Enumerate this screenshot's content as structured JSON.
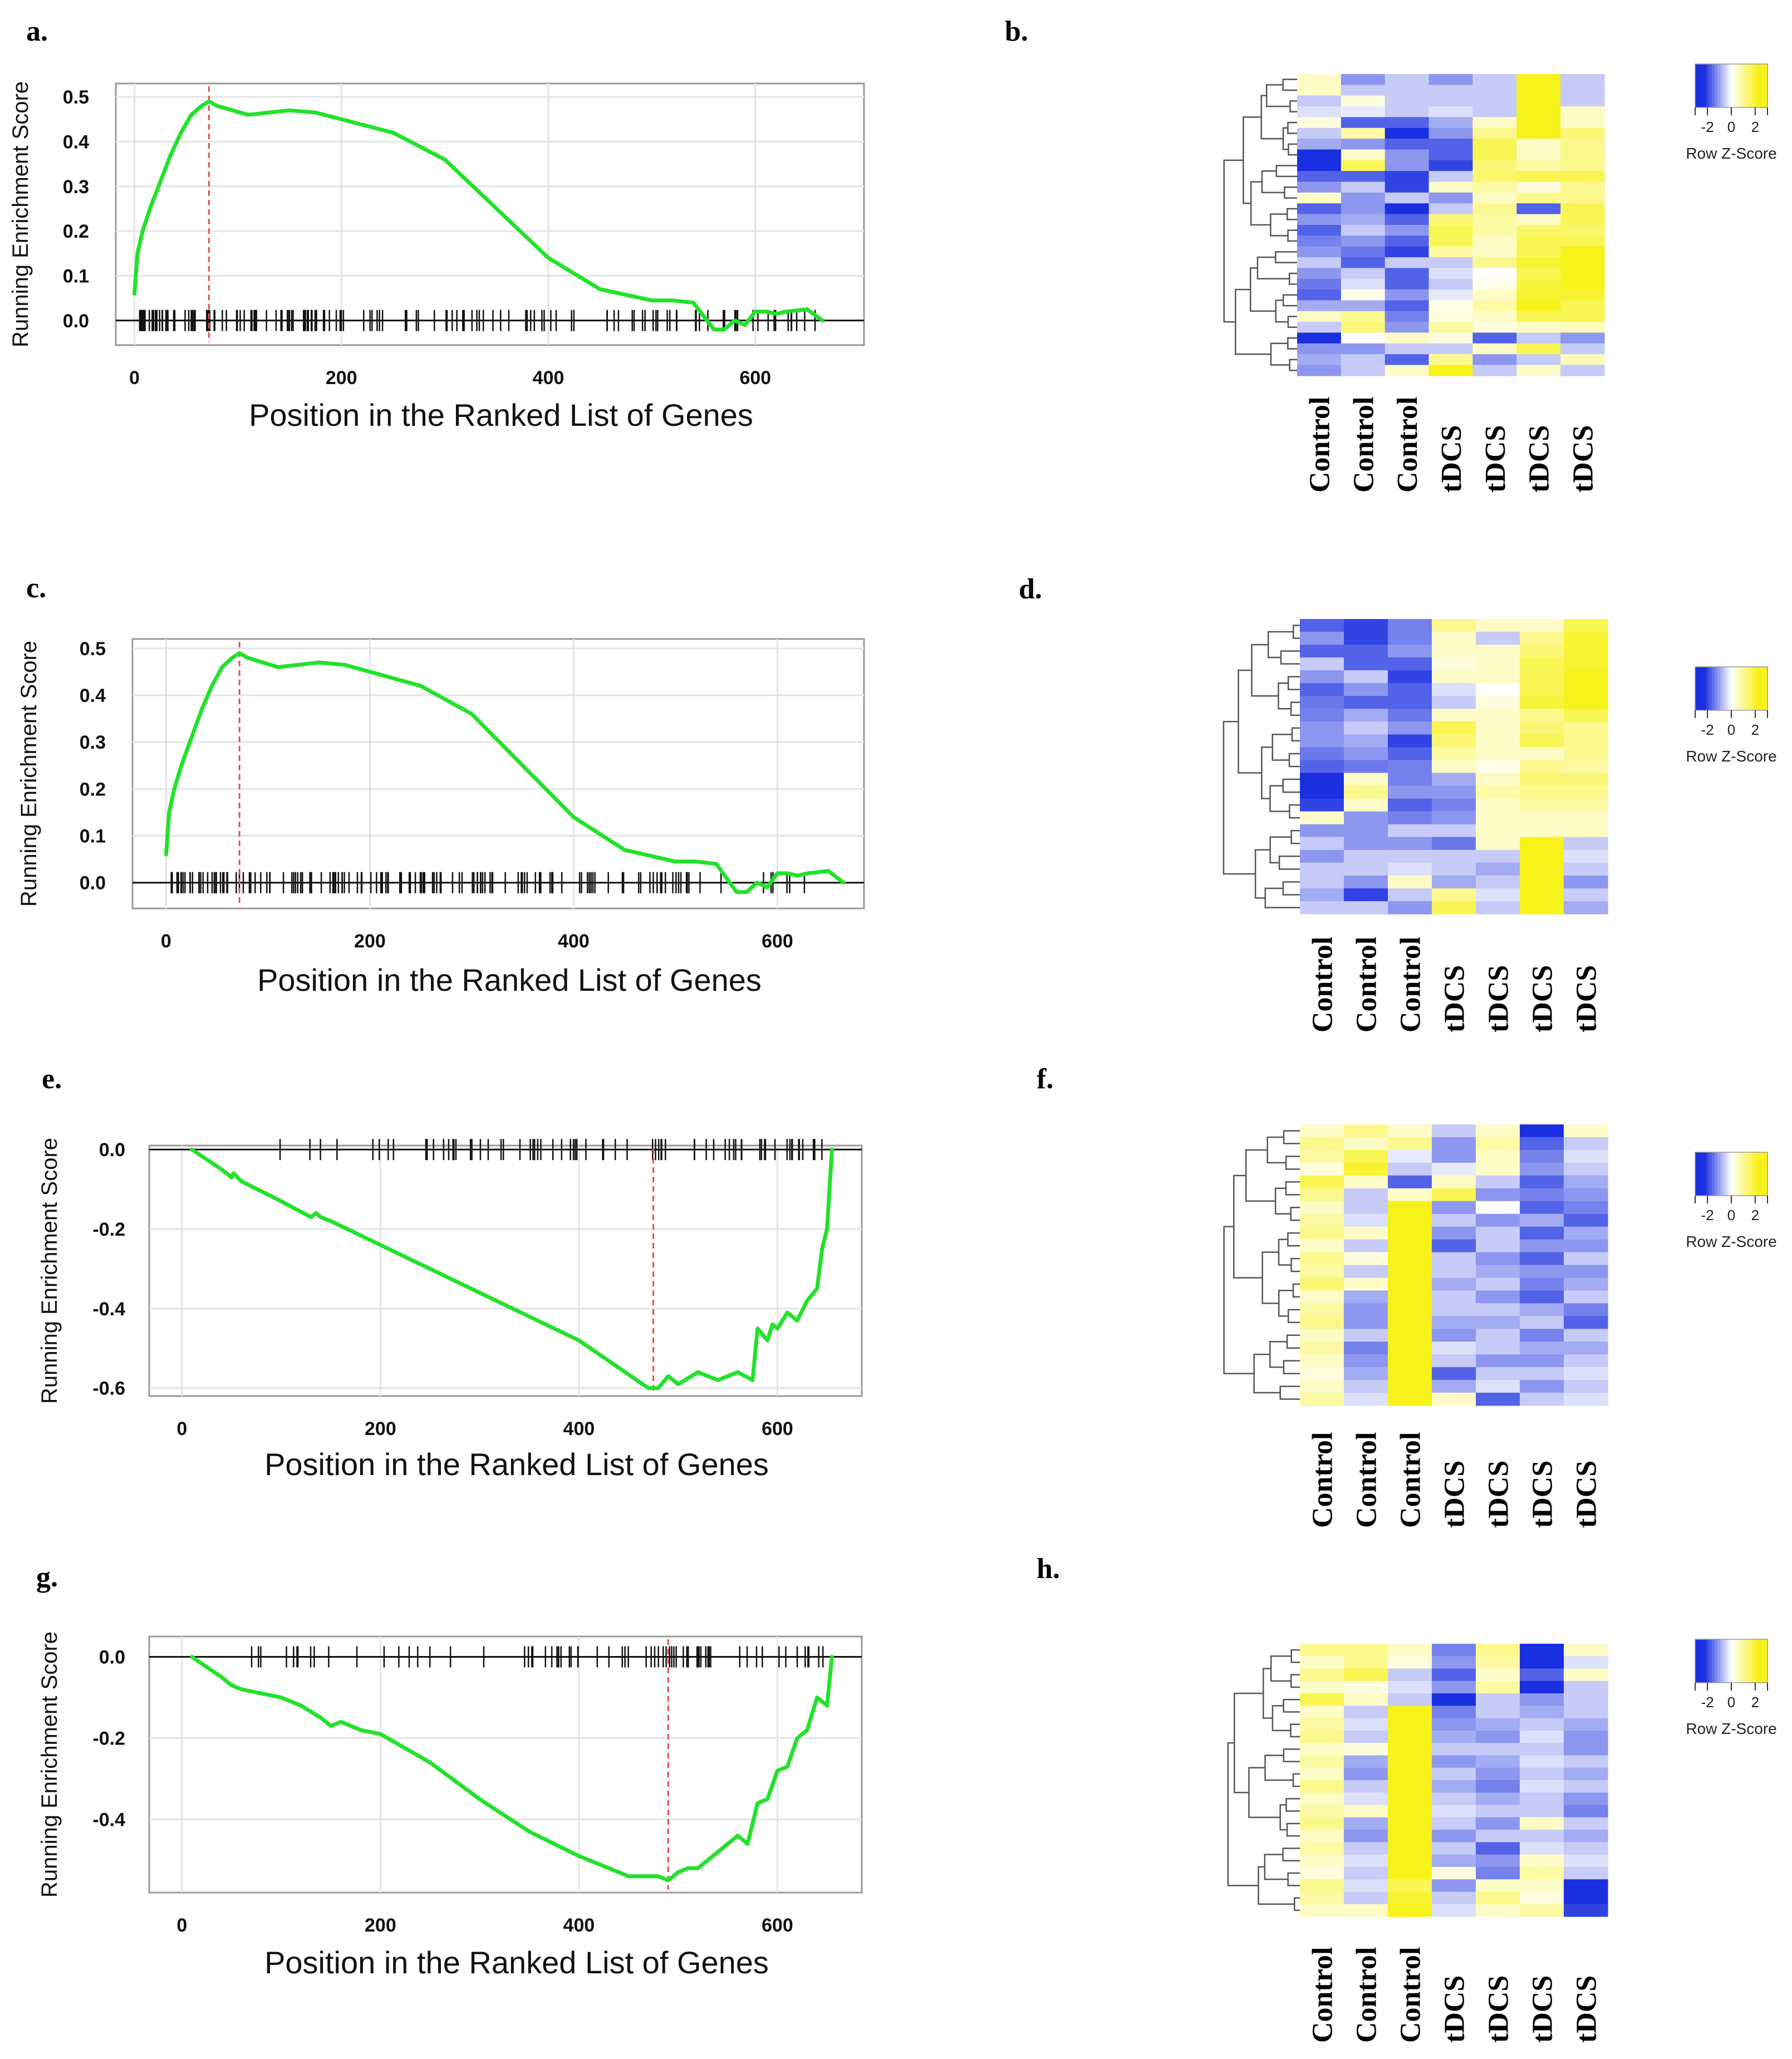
{
  "panel_letters": {
    "a": "a.",
    "b": "b.",
    "c": "c.",
    "d": "d.",
    "e": "e.",
    "f": "f.",
    "g": "g.",
    "h": "h."
  },
  "x_axis_title": "Position in the Ranked List of Genes",
  "y_axis_title": "Running Enrichment Score",
  "heatmap_column_labels": [
    "Control",
    "Control",
    "Control",
    "tDCS",
    "tDCS",
    "tDCS",
    "tDCS"
  ],
  "color_key": {
    "title": "Row Z-Score",
    "ticks": [
      "-2",
      "0",
      "2"
    ],
    "low": "#1a2fe0",
    "mid": "#ffffff",
    "high": "#f7f21a"
  },
  "colors": {
    "curve": "#22e22a",
    "peak_line": "#e0504a",
    "grid": "#e4e4e4"
  },
  "chart_data": [
    {
      "panel": "a",
      "type": "line",
      "title": "",
      "xlabel": "Position in the Ranked List of Genes",
      "ylabel": "Running Enrichment Score",
      "xlim": [
        -18,
        705
      ],
      "ylim": [
        -0.055,
        0.53
      ],
      "xticks": [
        "0",
        "200",
        "400",
        "600"
      ],
      "yticks": [
        "0.0",
        "0.1",
        "0.2",
        "0.3",
        "0.4",
        "0.5"
      ],
      "x": [
        0,
        3,
        8,
        15,
        25,
        35,
        45,
        55,
        65,
        72,
        80,
        95,
        110,
        130,
        150,
        175,
        200,
        250,
        300,
        350,
        400,
        450,
        500,
        520,
        540,
        560,
        570,
        580,
        590,
        600,
        610,
        620,
        630,
        650,
        665
      ],
      "y": [
        0.06,
        0.15,
        0.2,
        0.25,
        0.31,
        0.37,
        0.42,
        0.46,
        0.48,
        0.49,
        0.48,
        0.47,
        0.46,
        0.465,
        0.47,
        0.465,
        0.45,
        0.42,
        0.36,
        0.25,
        0.14,
        0.07,
        0.045,
        0.045,
        0.04,
        -0.02,
        -0.02,
        0.0,
        -0.01,
        0.02,
        0.02,
        0.015,
        0.02,
        0.025,
        0.0
      ],
      "peak_x": 72
    },
    {
      "panel": "c",
      "type": "line",
      "title": "",
      "xlabel": "Position in the Ranked List of Genes",
      "ylabel": "Running Enrichment Score",
      "xlim": [
        -33,
        685
      ],
      "ylim": [
        -0.055,
        0.52
      ],
      "xticks": [
        "0",
        "200",
        "400",
        "600"
      ],
      "yticks": [
        "0.0",
        "0.1",
        "0.2",
        "0.3",
        "0.4",
        "0.5"
      ],
      "x": [
        0,
        3,
        8,
        15,
        25,
        35,
        45,
        55,
        65,
        72,
        80,
        95,
        110,
        130,
        150,
        175,
        200,
        250,
        300,
        350,
        400,
        450,
        500,
        520,
        540,
        560,
        570,
        580,
        590,
        600,
        610,
        620,
        630,
        650,
        665
      ],
      "y": [
        0.06,
        0.15,
        0.2,
        0.25,
        0.31,
        0.37,
        0.42,
        0.46,
        0.48,
        0.49,
        0.48,
        0.47,
        0.46,
        0.465,
        0.47,
        0.465,
        0.45,
        0.42,
        0.36,
        0.25,
        0.14,
        0.07,
        0.045,
        0.045,
        0.04,
        -0.02,
        -0.02,
        0.0,
        -0.01,
        0.02,
        0.02,
        0.015,
        0.02,
        0.025,
        0.0
      ],
      "peak_x": 72
    },
    {
      "panel": "e",
      "type": "line",
      "title": "",
      "xlabel": "Position in the Ranked List of Genes",
      "ylabel": "Running Enrichment Score",
      "xlim": [
        -33,
        685
      ],
      "ylim": [
        -0.62,
        0.01
      ],
      "xticks": [
        "0",
        "200",
        "400",
        "600"
      ],
      "yticks": [
        "0.0",
        "-0.2",
        "-0.4",
        "-0.6"
      ],
      "x": [
        10,
        40,
        50,
        52,
        60,
        100,
        130,
        135,
        140,
        150,
        200,
        300,
        400,
        470,
        480,
        490,
        500,
        520,
        540,
        560,
        575,
        580,
        590,
        595,
        600,
        610,
        620,
        630,
        640,
        645,
        650,
        655
      ],
      "y": [
        0.0,
        -0.05,
        -0.07,
        -0.06,
        -0.08,
        -0.13,
        -0.17,
        -0.16,
        -0.17,
        -0.18,
        -0.24,
        -0.36,
        -0.48,
        -0.6,
        -0.6,
        -0.57,
        -0.59,
        -0.56,
        -0.58,
        -0.56,
        -0.58,
        -0.45,
        -0.48,
        -0.44,
        -0.45,
        -0.41,
        -0.43,
        -0.38,
        -0.35,
        -0.25,
        -0.2,
        0.0
      ],
      "peak_x": 475
    },
    {
      "panel": "g",
      "type": "line",
      "title": "",
      "xlabel": "Position in the Ranked List of Genes",
      "ylabel": "Running Enrichment Score",
      "xlim": [
        -33,
        685
      ],
      "ylim": [
        -0.58,
        0.05
      ],
      "xticks": [
        "0",
        "200",
        "400",
        "600"
      ],
      "yticks": [
        "0.0",
        "-0.2",
        "-0.4"
      ],
      "x": [
        10,
        40,
        50,
        60,
        80,
        100,
        120,
        140,
        150,
        160,
        180,
        200,
        250,
        300,
        350,
        400,
        450,
        480,
        490,
        500,
        510,
        520,
        540,
        560,
        570,
        580,
        590,
        600,
        610,
        620,
        630,
        640,
        650,
        655
      ],
      "y": [
        0.0,
        -0.05,
        -0.07,
        -0.08,
        -0.09,
        -0.1,
        -0.12,
        -0.15,
        -0.17,
        -0.16,
        -0.18,
        -0.19,
        -0.26,
        -0.35,
        -0.43,
        -0.49,
        -0.54,
        -0.54,
        -0.55,
        -0.53,
        -0.52,
        -0.52,
        -0.48,
        -0.44,
        -0.46,
        -0.36,
        -0.35,
        -0.28,
        -0.27,
        -0.2,
        -0.18,
        -0.1,
        -0.12,
        0.0
      ],
      "peak_x": 490
    }
  ],
  "heatmaps": [
    {
      "panel": "b",
      "rows": [
        [
          0.5,
          -1,
          -0.5,
          -1,
          -0.5,
          2,
          -0.5
        ],
        [
          0.5,
          -0.5,
          -0.5,
          -0.5,
          -0.5,
          2,
          -0.5
        ],
        [
          -0.5,
          0.3,
          -0.5,
          -0.5,
          -0.5,
          2,
          -0.5
        ],
        [
          -0.3,
          -0.2,
          -0.5,
          -0.3,
          -0.5,
          2,
          0.5
        ],
        [
          0.3,
          -1.5,
          -1.5,
          -0.8,
          0.5,
          2,
          0.5
        ],
        [
          -0.5,
          0.8,
          -2,
          -1,
          1,
          2,
          1.2
        ],
        [
          -0.8,
          -1,
          -1.5,
          -1.5,
          1.5,
          0.5,
          1
        ],
        [
          -2,
          0.5,
          -1,
          -1.5,
          1.5,
          0.5,
          1
        ],
        [
          -2,
          1.5,
          -1,
          -1.8,
          1.2,
          0.8,
          1
        ],
        [
          -1.5,
          -1.5,
          -1.8,
          -0.5,
          1.3,
          1.5,
          1.5
        ],
        [
          -1,
          -0.5,
          -1.8,
          0.5,
          0.8,
          0.3,
          1
        ],
        [
          0.5,
          -1,
          -0.5,
          -1,
          0.5,
          1,
          1
        ],
        [
          -1.5,
          -1,
          -2,
          -0.5,
          1,
          -1.5,
          1.5
        ],
        [
          -1,
          -0.8,
          -1.5,
          1.2,
          0.8,
          0.5,
          1.5
        ],
        [
          -1.5,
          -0.5,
          -1,
          1.5,
          0.8,
          1.3,
          1.3
        ],
        [
          -1.2,
          -1,
          -1.5,
          1.5,
          0.5,
          1.5,
          1.5
        ],
        [
          -1,
          -1.3,
          -1.8,
          0.8,
          0.5,
          1.5,
          2
        ],
        [
          -0.5,
          -1.5,
          -0.5,
          -0.5,
          1,
          1.8,
          2
        ],
        [
          -1,
          -0.5,
          -1.5,
          -0.3,
          0,
          1.5,
          2
        ],
        [
          -1.3,
          -0.3,
          -1.5,
          -0.5,
          0.2,
          1.7,
          2
        ],
        [
          -1.5,
          0.2,
          -1,
          -0.2,
          0.5,
          1.8,
          1.8
        ],
        [
          -0.8,
          -0.8,
          -1.5,
          0.2,
          0.8,
          2,
          1.5
        ],
        [
          0.5,
          1,
          -1.2,
          0.3,
          0.5,
          1.5,
          1.5
        ],
        [
          -0.5,
          1.2,
          -1,
          0.8,
          0.3,
          0.5,
          0.6
        ],
        [
          -2.2,
          0,
          0.5,
          0.3,
          -1.5,
          -0.5,
          -1
        ],
        [
          -1,
          -1,
          -0.5,
          -0.5,
          0.5,
          1.5,
          -0.5
        ],
        [
          -0.8,
          -0.5,
          -1.5,
          1,
          -1,
          -0.5,
          0.6
        ],
        [
          -1,
          -0.5,
          0.5,
          2,
          -0.5,
          0.5,
          -0.5
        ]
      ]
    },
    {
      "panel": "d",
      "rows": [
        [
          -1.5,
          -1.8,
          -1.2,
          1,
          0.5,
          0.5,
          1.5
        ],
        [
          -1,
          -1.8,
          -1.2,
          0.5,
          -0.5,
          1,
          1.8
        ],
        [
          -1.5,
          -1.5,
          -1,
          0.5,
          0.5,
          1.2,
          1.8
        ],
        [
          -0.5,
          -1.5,
          -1.5,
          0.3,
          0.5,
          1.5,
          1.8
        ],
        [
          -1,
          -0.5,
          -1.8,
          0.5,
          0.5,
          1.5,
          2
        ],
        [
          -1.5,
          -1,
          -1.5,
          -0.3,
          0,
          1.5,
          2
        ],
        [
          -1.3,
          -1.5,
          -1.5,
          -0.5,
          0.3,
          1.7,
          2
        ],
        [
          -1.2,
          -0.8,
          -1.3,
          0.5,
          0.5,
          1,
          1.5
        ],
        [
          -1,
          -0.5,
          -1,
          1.5,
          0.5,
          1.2,
          1
        ],
        [
          -1,
          -0.8,
          -1.8,
          1.2,
          0.5,
          1.5,
          1
        ],
        [
          -1.3,
          -1,
          -1.5,
          0.8,
          0.5,
          0.5,
          1
        ],
        [
          -1.5,
          -1.3,
          -1.2,
          0.5,
          0.2,
          1,
          0.8
        ],
        [
          -2,
          0.5,
          -1.2,
          -0.8,
          0.5,
          1.2,
          1.2
        ],
        [
          -2,
          1,
          -1,
          -1,
          0.8,
          1,
          1
        ],
        [
          -1.8,
          0.5,
          -1.5,
          -1.2,
          0.5,
          0.8,
          0.8
        ],
        [
          0.5,
          -1,
          -1.2,
          -1,
          0.5,
          0.5,
          0.5
        ],
        [
          -1,
          -1,
          -0.5,
          -0.5,
          0.5,
          0.5,
          0.5
        ],
        [
          -0.5,
          -1,
          -1,
          -1.3,
          0.5,
          2,
          -0.5
        ],
        [
          -1,
          -0.5,
          -0.5,
          -0.5,
          -0.5,
          2,
          -0.3
        ],
        [
          -0.5,
          -0.5,
          -0.3,
          -0.5,
          -0.8,
          2,
          -0.5
        ],
        [
          -0.5,
          -1,
          0.5,
          -0.8,
          -0.5,
          2,
          -1
        ],
        [
          -0.8,
          -1.8,
          -0.5,
          1,
          -0.3,
          2,
          -0.5
        ],
        [
          -0.5,
          -0.5,
          -1,
          1.5,
          -0.5,
          2,
          -0.8
        ]
      ]
    },
    {
      "panel": "f",
      "rows": [
        [
          0.5,
          1,
          0.5,
          -0.5,
          0.5,
          -2,
          0.5
        ],
        [
          1,
          0.5,
          1,
          -1,
          0.8,
          -1.5,
          -0.5
        ],
        [
          0.8,
          1.5,
          -0.2,
          -1,
          0.5,
          -1.2,
          -0.3
        ],
        [
          0.3,
          1.8,
          -0.5,
          -0.2,
          0.5,
          -1,
          -0.5
        ],
        [
          1.5,
          0.5,
          -1.5,
          0.5,
          -0.5,
          -1.5,
          -0.8
        ],
        [
          1,
          -0.5,
          0.5,
          1.5,
          -1,
          -1.2,
          -1
        ],
        [
          0.5,
          -0.5,
          2,
          -1,
          0,
          -1.5,
          -1.2
        ],
        [
          0.8,
          -0.3,
          2,
          -0.5,
          -1,
          -0.8,
          -1.5
        ],
        [
          1,
          0.5,
          2,
          -1,
          -0.5,
          -1.5,
          -0.8
        ],
        [
          0.5,
          -0.5,
          2,
          -1.5,
          -0.5,
          -1,
          -1
        ],
        [
          1,
          0.3,
          2,
          -0.5,
          -1,
          -1.5,
          -0.5
        ],
        [
          0.8,
          -0.5,
          2,
          -0.5,
          -0.8,
          -1,
          -1
        ],
        [
          1.2,
          0.5,
          2,
          -0.8,
          -0.5,
          -1.2,
          -0.8
        ],
        [
          0.5,
          -0.8,
          2,
          -0.5,
          -1,
          -1.5,
          -0.5
        ],
        [
          0.8,
          -1,
          2,
          -0.5,
          -0.5,
          -0.8,
          -1.2
        ],
        [
          1,
          -1,
          2,
          -0.8,
          -0.8,
          -0.5,
          -1.5
        ],
        [
          0.5,
          -0.5,
          2,
          -1,
          -0.5,
          -1.2,
          -0.5
        ],
        [
          0.8,
          -1.2,
          2,
          -0.3,
          -0.5,
          -0.8,
          -0.8
        ],
        [
          0.5,
          -1,
          2,
          -0.5,
          -1,
          -1,
          -0.5
        ],
        [
          0.3,
          -0.8,
          2,
          -1.5,
          -0.5,
          -0.5,
          -0.3
        ],
        [
          0.5,
          -0.5,
          2,
          -0.8,
          -0.3,
          -1,
          -0.5
        ],
        [
          0.8,
          -0.3,
          2,
          0.5,
          -1.5,
          -0.5,
          -0.3
        ]
      ]
    },
    {
      "panel": "h",
      "rows": [
        [
          1,
          1,
          0.5,
          -1.2,
          1,
          -2,
          0.5
        ],
        [
          0.5,
          1,
          0.3,
          -1,
          0.8,
          -2,
          -0.3
        ],
        [
          1,
          1.5,
          -0.5,
          -1.5,
          0.5,
          -1.5,
          0.5
        ],
        [
          0.5,
          0.3,
          -0.3,
          -1,
          0.8,
          -2,
          -0.5
        ],
        [
          1.5,
          0.5,
          -0.5,
          -2,
          -0.5,
          -1,
          -0.5
        ],
        [
          0.5,
          -0.5,
          2,
          -1.2,
          -0.5,
          -0.8,
          -0.5
        ],
        [
          0.8,
          -0.3,
          2,
          -1,
          -0.8,
          -0.5,
          -0.8
        ],
        [
          1,
          -0.5,
          2,
          -0.8,
          -1,
          -0.3,
          -1
        ],
        [
          0.5,
          0.3,
          2,
          -0.5,
          -0.5,
          -0.5,
          -1
        ],
        [
          0.8,
          -0.8,
          2,
          -1,
          -0.8,
          -0.3,
          -0.5
        ],
        [
          0.5,
          -1,
          2,
          -0.5,
          -1,
          -0.5,
          -0.8
        ],
        [
          1,
          -0.5,
          2,
          -0.8,
          -1.2,
          -0.3,
          -0.5
        ],
        [
          0.5,
          -0.3,
          2,
          -0.5,
          -0.8,
          -0.5,
          -1
        ],
        [
          0.8,
          0.5,
          2,
          -0.3,
          -0.5,
          -0.5,
          -1.2
        ],
        [
          1,
          -0.8,
          2,
          -0.5,
          -1,
          0.5,
          -0.5
        ],
        [
          0.5,
          -1,
          2,
          -1,
          -0.5,
          -0.5,
          -0.8
        ],
        [
          0.8,
          -0.5,
          2,
          -0.5,
          -1.5,
          -0.3,
          -0.5
        ],
        [
          0.5,
          -0.3,
          2,
          -0.8,
          -1,
          0.5,
          -0.3
        ],
        [
          0.3,
          -0.5,
          2,
          0.3,
          -1.2,
          0.8,
          -0.5
        ],
        [
          1,
          -0.3,
          1.5,
          -1,
          0.5,
          0.5,
          -2
        ],
        [
          0.8,
          -0.5,
          1.8,
          -0.5,
          1,
          0.3,
          -2
        ],
        [
          0.5,
          0.5,
          2,
          -0.3,
          0.5,
          0.8,
          -1.8
        ]
      ]
    }
  ]
}
